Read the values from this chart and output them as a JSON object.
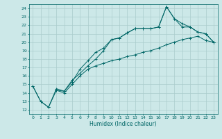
{
  "xlabel": "Humidex (Indice chaleur)",
  "bg_color": "#cce8e8",
  "line_color": "#006666",
  "grid_color": "#aacccc",
  "xlim": [
    -0.5,
    23.5
  ],
  "ylim": [
    11.5,
    24.5
  ],
  "xticks": [
    0,
    1,
    2,
    3,
    4,
    5,
    6,
    7,
    8,
    9,
    10,
    11,
    12,
    13,
    14,
    15,
    16,
    17,
    18,
    19,
    20,
    21,
    22,
    23
  ],
  "yticks": [
    12,
    13,
    14,
    15,
    16,
    17,
    18,
    19,
    20,
    21,
    22,
    23,
    24
  ],
  "line1_x": [
    0,
    1,
    2,
    3,
    4,
    5,
    6,
    7,
    8,
    9,
    10,
    11,
    12,
    13,
    14,
    15,
    16,
    17,
    18,
    19,
    20,
    21,
    22,
    23
  ],
  "line1_y": [
    14.8,
    13.0,
    12.3,
    14.5,
    14.2,
    15.3,
    16.8,
    17.8,
    18.8,
    19.3,
    20.3,
    20.5,
    21.1,
    21.6,
    21.6,
    21.6,
    21.8,
    24.2,
    22.8,
    22.2,
    21.8,
    21.2,
    21.0,
    20.0
  ],
  "line2_x": [
    0,
    1,
    2,
    3,
    4,
    5,
    6,
    7,
    8,
    9,
    10,
    11,
    12,
    13,
    14,
    15,
    16,
    17,
    18,
    19,
    20,
    21,
    22,
    23
  ],
  "line2_y": [
    14.8,
    13.0,
    12.3,
    14.3,
    14.0,
    15.0,
    16.0,
    16.8,
    17.2,
    17.5,
    17.8,
    18.0,
    18.3,
    18.5,
    18.8,
    19.0,
    19.3,
    19.7,
    20.0,
    20.3,
    20.5,
    20.7,
    20.2,
    20.0
  ],
  "line3_x": [
    3,
    4,
    5,
    6,
    7,
    8,
    9,
    10,
    11,
    12,
    13,
    14,
    15,
    16,
    17,
    18,
    19,
    20,
    21,
    22,
    23
  ],
  "line3_y": [
    14.3,
    14.2,
    15.5,
    16.3,
    17.2,
    18.0,
    19.0,
    20.3,
    20.5,
    21.1,
    21.6,
    21.6,
    21.6,
    21.8,
    24.2,
    22.8,
    21.8,
    21.8,
    21.2,
    21.0,
    20.0
  ]
}
